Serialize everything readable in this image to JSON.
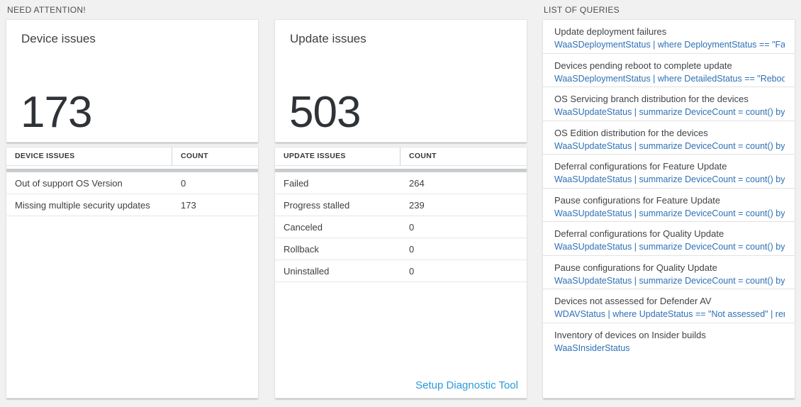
{
  "colors": {
    "page_background": "#f1f1f1",
    "card_background": "#ffffff",
    "big_number_color": "#2f3337",
    "query_link_blue": "#2e71b5",
    "action_link_blue": "#2b9ad9",
    "scroll_shadow_gray": "#c4c7c9"
  },
  "need_attention": {
    "header": "NEED ATTENTION!",
    "device_card": {
      "title": "Device issues",
      "value": "173"
    },
    "device_table": {
      "col_issue": "DEVICE ISSUES",
      "col_count": "COUNT",
      "rows": [
        {
          "label": "Out of support OS Version",
          "count": "0"
        },
        {
          "label": "Missing multiple security updates",
          "count": "173"
        }
      ]
    },
    "update_card": {
      "title": "Update issues",
      "value": "503"
    },
    "update_table": {
      "col_issue": "UPDATE ISSUES",
      "col_count": "COUNT",
      "rows": [
        {
          "label": "Failed",
          "count": "264"
        },
        {
          "label": "Progress stalled",
          "count": "239"
        },
        {
          "label": "Canceled",
          "count": "0"
        },
        {
          "label": "Rollback",
          "count": "0"
        },
        {
          "label": "Uninstalled",
          "count": "0"
        }
      ],
      "footer_link": "Setup Diagnostic Tool"
    }
  },
  "queries": {
    "header": "LIST OF QUERIES",
    "items": [
      {
        "title": "Update deployment failures",
        "query": "WaaSDeploymentStatus | where DeploymentStatus == \"Failed\" |..."
      },
      {
        "title": "Devices pending reboot to complete update",
        "query": "WaaSDeploymentStatus | where DetailedStatus == \"Reboot pend..."
      },
      {
        "title": "OS Servicing branch distribution for the devices",
        "query": "WaaSUpdateStatus | summarize DeviceCount = count() by OSSer..."
      },
      {
        "title": "OS Edition distribution for the devices",
        "query": "WaaSUpdateStatus | summarize DeviceCount = count() by OSEdit..."
      },
      {
        "title": "Deferral configurations for Feature Update",
        "query": "WaaSUpdateStatus | summarize DeviceCount = count() by Featur..."
      },
      {
        "title": "Pause configurations for Feature Update",
        "query": "WaaSUpdateStatus | summarize DeviceCount = count() by Featur..."
      },
      {
        "title": "Deferral configurations for Quality Update",
        "query": "WaaSUpdateStatus | summarize DeviceCount = count() by Qualit..."
      },
      {
        "title": "Pause configurations for Quality Update",
        "query": "WaaSUpdateStatus | summarize DeviceCount = count() by Qualit..."
      },
      {
        "title": "Devices not assessed for Defender AV",
        "query": "WDAVStatus | where UpdateStatus == \"Not assessed\" | render ta..."
      },
      {
        "title": "Inventory of devices on Insider builds",
        "query": "WaaSInsiderStatus"
      }
    ]
  }
}
